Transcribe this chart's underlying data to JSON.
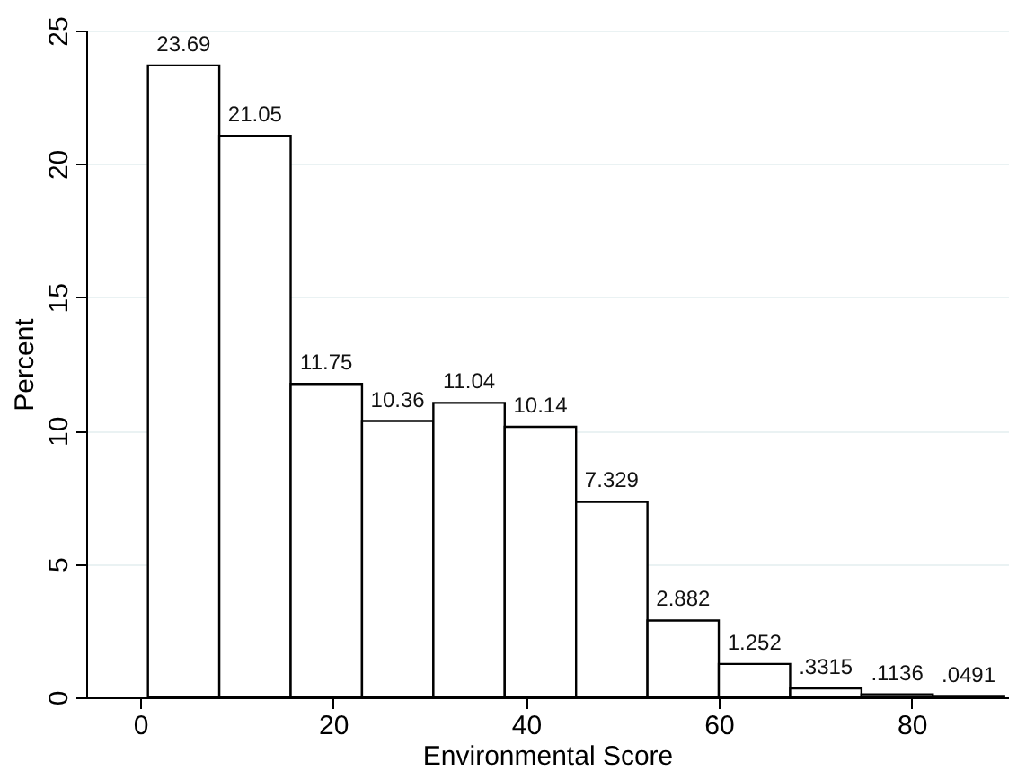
{
  "chart_data": {
    "type": "histogram",
    "xlabel": "Environmental Score",
    "ylabel": "Percent",
    "bins": [
      0.8,
      8.2,
      15.6,
      23,
      30.4,
      37.8,
      45.2,
      52.6,
      60,
      67.4,
      74.8,
      82.2,
      89.6
    ],
    "values": [
      23.69,
      21.05,
      11.75,
      10.36,
      11.04,
      10.14,
      7.329,
      2.882,
      1.252,
      0.3315,
      0.1136,
      0.0491
    ],
    "value_labels": [
      "23.69",
      "21.05",
      "11.75",
      "10.36",
      "11.04",
      "10.14",
      "7.329",
      "2.882",
      "1.252",
      ".3315",
      ".1136",
      ".0491"
    ],
    "color": "#ffffff",
    "xlim": [
      -5.6,
      90
    ],
    "xticks": [
      0,
      20,
      40,
      60,
      80
    ],
    "ylim": [
      0,
      25
    ],
    "yticks": [
      0,
      5,
      10,
      15,
      20,
      25
    ],
    "grid": "y"
  }
}
